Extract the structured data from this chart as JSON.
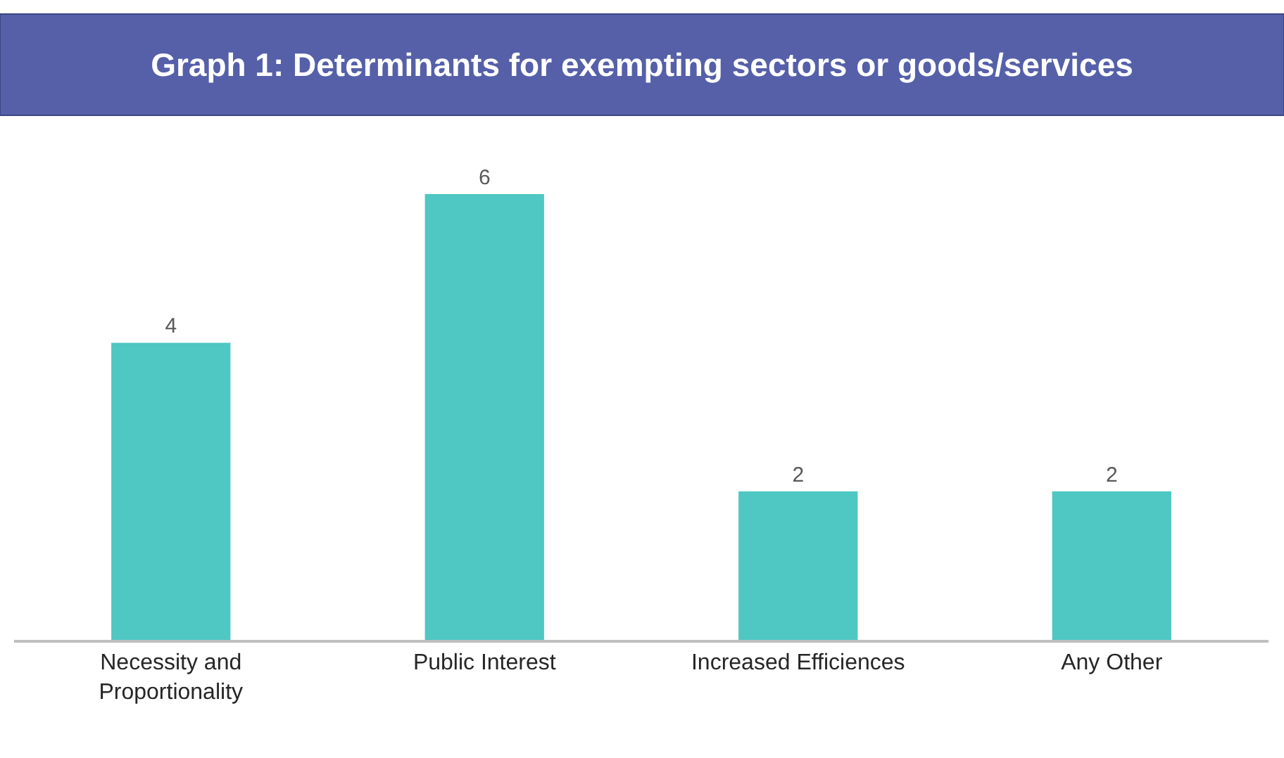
{
  "chart_data": {
    "type": "bar",
    "title": "Graph 1: Determinants for exempting sectors or goods/services",
    "categories": [
      "Necessity and Proportionality",
      "Public Interest",
      "Increased Efficiences",
      "Any Other"
    ],
    "values": [
      4,
      6,
      2,
      2
    ],
    "color": "#4fc7c2",
    "data_labels": true
  }
}
